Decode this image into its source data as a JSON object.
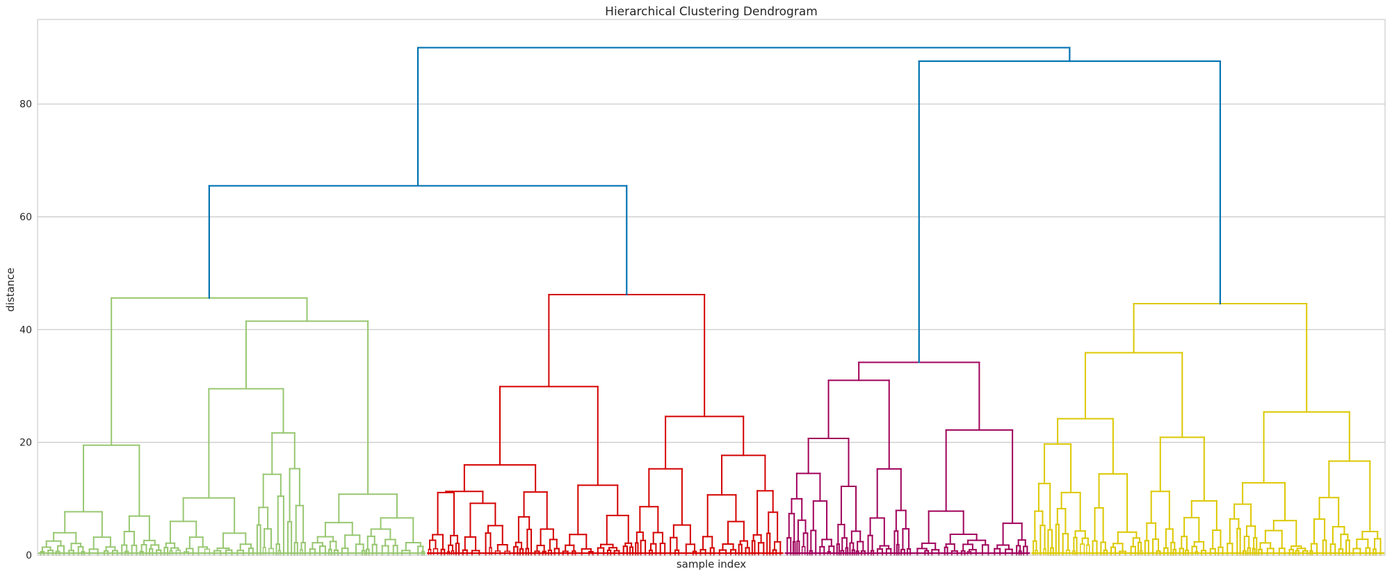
{
  "chart_data": {
    "type": "dendrogram",
    "title": "Hierarchical Clustering Dendrogram",
    "xlabel": "sample index",
    "ylabel": "distance",
    "ylim": [
      0,
      95
    ],
    "yticks": [
      0,
      20,
      40,
      60,
      80
    ],
    "grid": "horizontal",
    "colors": {
      "link": "#0072b2",
      "cluster_green": "#97c770",
      "cluster_red": "#d40000",
      "cluster_purple": "#a0005a",
      "cluster_yellow": "#dcc800",
      "grid": "#cccccc",
      "frame": "#cccccc"
    },
    "clusters": [
      {
        "color": "cluster_green",
        "x_range": [
          0,
          0.2885
        ],
        "top_height": 45.6
      },
      {
        "color": "cluster_red",
        "x_range": [
          0.2885,
          0.554
        ],
        "top_height": 46.2
      },
      {
        "color": "cluster_purple",
        "x_range": [
          0.554,
          0.737
        ],
        "top_height": 34.2
      },
      {
        "color": "cluster_yellow",
        "x_range": [
          0.737,
          1.0
        ],
        "top_height": 44.6
      }
    ],
    "links": [
      {
        "left": "green",
        "right": "red",
        "height": 65.5
      },
      {
        "left": "green+red",
        "right": "purple+yellow",
        "height": 90.0
      },
      {
        "left": "purple",
        "right": "yellow",
        "height": 87.6
      }
    ],
    "subtree_heights": {
      "green": [
        19.5,
        41.5,
        30.4,
        32.7,
        22.8,
        21.9,
        19.8,
        14.3,
        15.4,
        14.2
      ],
      "red": [
        29.9,
        24.6,
        16.0,
        12.4,
        11.3,
        11.2,
        11.1,
        9.2
      ],
      "purple": [
        31.0,
        22.2,
        20.7,
        15.3,
        14.5,
        12.2,
        10.0,
        9.6
      ],
      "yellow": [
        35.9,
        25.4,
        24.2,
        20.9,
        19.7,
        14.4,
        12.7,
        11.1
      ]
    }
  }
}
